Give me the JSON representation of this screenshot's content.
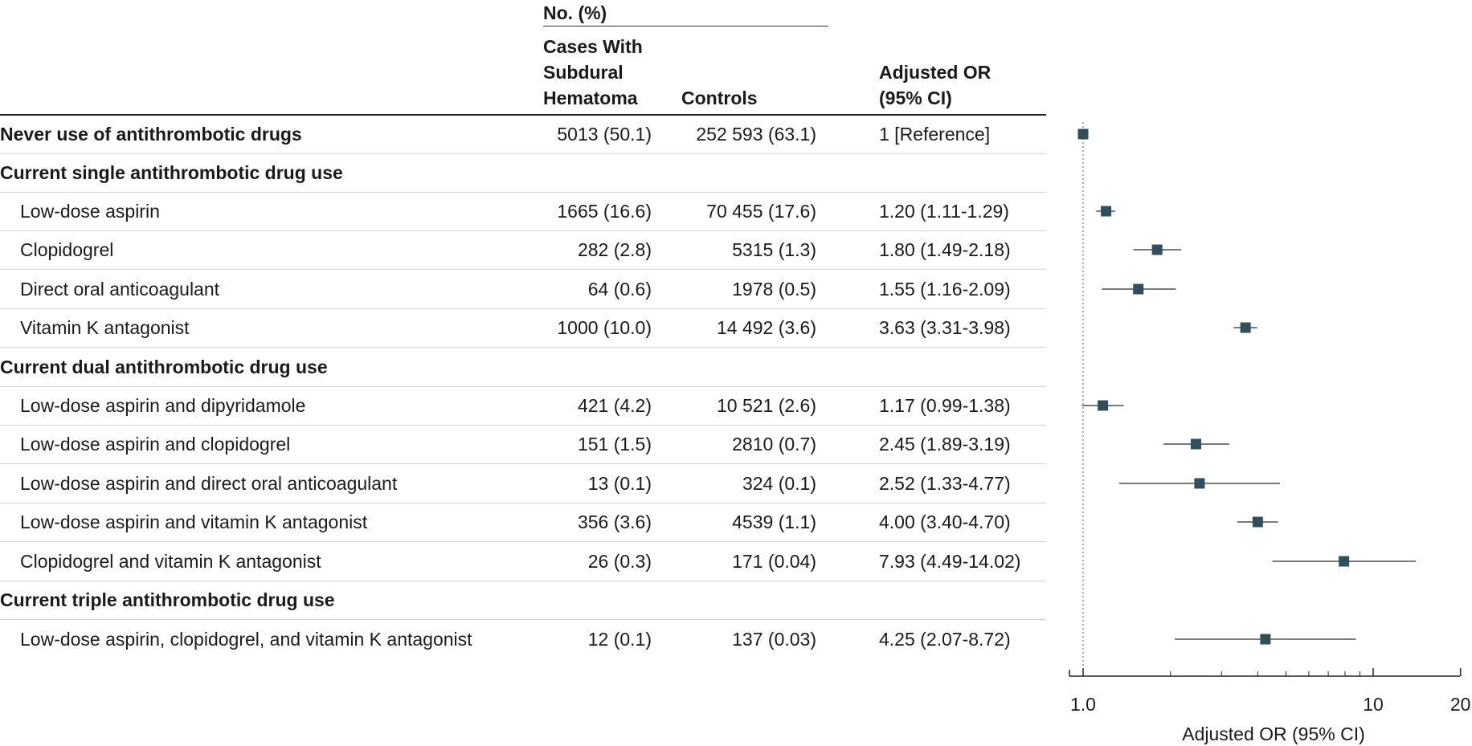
{
  "header": {
    "group_label": "No. (%)",
    "cases_label_lines": [
      "Cases With",
      "Subdural",
      "Hematoma"
    ],
    "controls_label": "Controls",
    "or_label_lines": [
      "Adjusted OR",
      "(95% CI)"
    ]
  },
  "rows": [
    {
      "label": "Never use of antithrombotic drugs",
      "bold": true,
      "indent": false,
      "cases": "5013 (50.1)",
      "controls": "252 593 (63.1)",
      "or_text": "1 [Reference]"
    },
    {
      "label": "Current single antithrombotic drug use",
      "bold": true,
      "indent": false,
      "cases": "",
      "controls": "",
      "or_text": ""
    },
    {
      "label": "Low-dose aspirin",
      "bold": false,
      "indent": true,
      "cases": "1665 (16.6)",
      "controls": "70 455 (17.6)",
      "or_text": "1.20 (1.11-1.29)"
    },
    {
      "label": "Clopidogrel",
      "bold": false,
      "indent": true,
      "cases": "282 (2.8)",
      "controls": "5315 (1.3)",
      "or_text": "1.80 (1.49-2.18)"
    },
    {
      "label": "Direct oral anticoagulant",
      "bold": false,
      "indent": true,
      "cases": "64 (0.6)",
      "controls": "1978 (0.5)",
      "or_text": "1.55 (1.16-2.09)"
    },
    {
      "label": "Vitamin K antagonist",
      "bold": false,
      "indent": true,
      "cases": "1000 (10.0)",
      "controls": "14 492 (3.6)",
      "or_text": "3.63 (3.31-3.98)"
    },
    {
      "label": "Current dual antithrombotic drug use",
      "bold": true,
      "indent": false,
      "cases": "",
      "controls": "",
      "or_text": ""
    },
    {
      "label": "Low-dose aspirin and dipyridamole",
      "bold": false,
      "indent": true,
      "cases": "421 (4.2)",
      "controls": "10 521 (2.6)",
      "or_text": "1.17 (0.99-1.38)"
    },
    {
      "label": "Low-dose aspirin and clopidogrel",
      "bold": false,
      "indent": true,
      "cases": "151 (1.5)",
      "controls": "2810 (0.7)",
      "or_text": "2.45 (1.89-3.19)"
    },
    {
      "label": "Low-dose aspirin and direct oral anticoagulant",
      "bold": false,
      "indent": true,
      "cases": "13 (0.1)",
      "controls": "324 (0.1)",
      "or_text": "2.52 (1.33-4.77)"
    },
    {
      "label": "Low-dose aspirin and vitamin K antagonist",
      "bold": false,
      "indent": true,
      "cases": "356 (3.6)",
      "controls": "4539 (1.1)",
      "or_text": "4.00 (3.40-4.70)"
    },
    {
      "label": "Clopidogrel and vitamin K antagonist",
      "bold": false,
      "indent": true,
      "cases": "26 (0.3)",
      "controls": "171 (0.04)",
      "or_text": "7.93 (4.49-14.02)"
    },
    {
      "label": "Current triple antithrombotic drug use",
      "bold": true,
      "indent": false,
      "cases": "",
      "controls": "",
      "or_text": ""
    },
    {
      "label": "Low-dose aspirin, clopidogrel, and vitamin K antagonist",
      "bold": false,
      "indent": true,
      "cases": "12 (0.1)",
      "controls": "137 (0.03)",
      "or_text": "4.25 (2.07-8.72)"
    }
  ],
  "chart_data": {
    "type": "forest",
    "x_scale": "log",
    "xlim": [
      0.95,
      20
    ],
    "xlabel": "Adjusted OR (95% CI)",
    "tick_labels": [
      "1.0",
      "10",
      "20"
    ],
    "major_ticks": [
      1,
      10,
      20
    ],
    "minor_ticks": [
      2,
      3,
      4,
      5,
      6,
      7,
      8,
      9
    ],
    "reference_line": 1,
    "marker_color": "#2e4f5b",
    "points": [
      {
        "label": "Never use of antithrombotic drugs",
        "or": 1.0,
        "lo": null,
        "hi": null
      },
      {
        "label": "Low-dose aspirin",
        "or": 1.2,
        "lo": 1.11,
        "hi": 1.29
      },
      {
        "label": "Clopidogrel",
        "or": 1.8,
        "lo": 1.49,
        "hi": 2.18
      },
      {
        "label": "Direct oral anticoagulant",
        "or": 1.55,
        "lo": 1.16,
        "hi": 2.09
      },
      {
        "label": "Vitamin K antagonist",
        "or": 3.63,
        "lo": 3.31,
        "hi": 3.98
      },
      {
        "label": "Low-dose aspirin and dipyridamole",
        "or": 1.17,
        "lo": 0.99,
        "hi": 1.38
      },
      {
        "label": "Low-dose aspirin and clopidogrel",
        "or": 2.45,
        "lo": 1.89,
        "hi": 3.19
      },
      {
        "label": "Low-dose aspirin and direct oral anticoagulant",
        "or": 2.52,
        "lo": 1.33,
        "hi": 4.77
      },
      {
        "label": "Low-dose aspirin and vitamin K antagonist",
        "or": 4.0,
        "lo": 3.4,
        "hi": 4.7
      },
      {
        "label": "Clopidogrel and vitamin K antagonist",
        "or": 7.93,
        "lo": 4.49,
        "hi": 14.02
      },
      {
        "label": "Low-dose aspirin, clopidogrel, and vitamin K antagonist",
        "or": 4.25,
        "lo": 2.07,
        "hi": 8.72
      }
    ]
  }
}
